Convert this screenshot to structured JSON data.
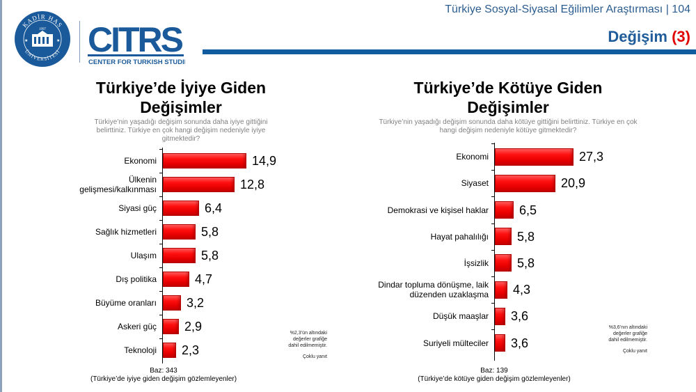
{
  "header": {
    "title": "Türkiye Sosyal-Siyasal Eğilimler Araştırması | 104",
    "section": "Değişim",
    "section_number": "(3)",
    "colors": {
      "brand_blue": "#115c9e",
      "accent_red": "#e00000"
    }
  },
  "logos": {
    "seal": {
      "top_text": "KADİR HAS",
      "year": "1997",
      "bottom_text": "ÜNİVERSİTESİ"
    },
    "citrs": {
      "wordmark": "CITRS",
      "tagline": "CENTER FOR TURKISH STUDIES"
    }
  },
  "left_chart": {
    "title_line1": "Türkiye’de İyiye Giden",
    "title_line2": "Değişimler",
    "subtitle": "Türkiye’nin yaşadığı değişim sonunda daha iyiye gittiğini belirttiniz. Türkiye en çok hangi değişim nedeniyle iyiye gitmektedir?",
    "note_line1": "%2,3’ün altındaki",
    "note_line2": "değerler grafiğe",
    "note_line3": "dahil edilmemiştir.",
    "multi": "Çoklu yanıt",
    "base": "Baz: 343",
    "base_desc": "(Türkiye’de iyiye giden değişim gözlemleyenler)"
  },
  "right_chart": {
    "title_line1": "Türkiye’de Kötüye Giden",
    "title_line2": "Değişimler",
    "subtitle": "Türkiye’nin yaşadığı değişim sonunda daha kötüye gittiğini belirttiniz. Türkiye en çok hangi değişim nedeniyle kötüye gitmektedir?",
    "note_line1": "%3,6’nın altındaki",
    "note_line2": "değerler grafiğe",
    "note_line3": "dahil edilmemiştir.",
    "multi": "Çoklu yanıt",
    "base": "Baz: 139",
    "base_desc": "(Türkiye’de kötüye giden değişim gözlemleyenler)"
  },
  "chart_data": [
    {
      "type": "bar",
      "orientation": "horizontal",
      "title": "Türkiye’de İyiye Giden Değişimler",
      "subtitle": "Türkiye’nin yaşadığı değişim sonunda daha iyiye gittiğini belirttiniz. Türkiye en çok hangi değişim nedeniyle iyiye gitmektedir?",
      "categories": [
        "Ekonomi",
        "Ülkenin gelişmesi/kalkınması",
        "Siyasi güç",
        "Sağlık hizmetleri",
        "Ulaşım",
        "Dış politika",
        "Büyüme oranları",
        "Askeri güç",
        "Teknoloji"
      ],
      "values": [
        14.9,
        12.8,
        6.4,
        5.8,
        5.8,
        4.7,
        3.2,
        2.9,
        2.3
      ],
      "value_labels": [
        "14,9",
        "12,8",
        "6,4",
        "5,8",
        "5,8",
        "4,7",
        "3,2",
        "2,9",
        "2,3"
      ],
      "xlabel": "",
      "ylabel": "",
      "grid": false,
      "bar_color": "#ff0000",
      "annotations": [
        "%2,3’ün altındaki değerler grafiğe dahil edilmemiştir.",
        "Çoklu yanıt",
        "Baz: 343",
        "(Türkiye’de iyiye giden değişim gözlemleyenler)"
      ]
    },
    {
      "type": "bar",
      "orientation": "horizontal",
      "title": "Türkiye’de Kötüye Giden Değişimler",
      "subtitle": "Türkiye’nin yaşadığı değişim sonunda daha kötüye gittiğini belirttiniz. Türkiye en çok hangi değişim nedeniyle kötüye gitmektedir?",
      "categories": [
        "Ekonomi",
        "Siyaset",
        "Demokrasi ve kişisel haklar",
        "Hayat pahalılığı",
        "İşsizlik",
        "Dindar topluma dönüşme, laik düzenden uzaklaşma",
        "Düşük maaşlar",
        "Suriyeli mülteciler"
      ],
      "values": [
        27.3,
        20.9,
        6.5,
        5.8,
        5.8,
        4.3,
        3.6,
        3.6
      ],
      "value_labels": [
        "27,3",
        "20,9",
        "6,5",
        "5,8",
        "5,8",
        "4,3",
        "3,6",
        "3,6"
      ],
      "xlabel": "",
      "ylabel": "",
      "grid": false,
      "bar_color": "#ff0000",
      "annotations": [
        "%3,6’nın altındaki değerler grafiğe dahil edilmemiştir.",
        "Çoklu yanıt",
        "Baz: 139",
        "(Türkiye’de kötüye giden değişim gözlemleyenler)"
      ]
    }
  ]
}
